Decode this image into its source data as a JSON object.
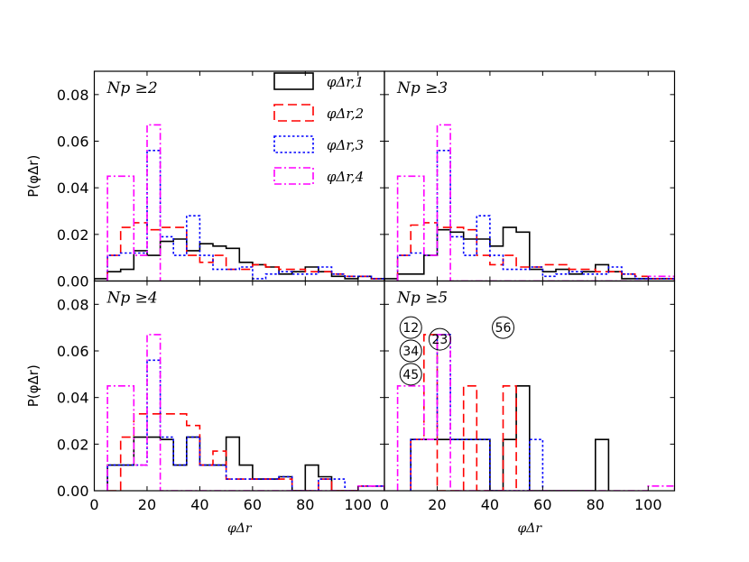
{
  "chart_data": {
    "type": "histogram-grid",
    "x_range": [
      0,
      110
    ],
    "y_range": [
      0,
      0.09
    ],
    "x_ticks": [
      "0",
      "20",
      "40",
      "60",
      "80",
      "100"
    ],
    "y_ticks": [
      "0.00",
      "0.02",
      "0.04",
      "0.06",
      "0.08"
    ],
    "y_label": "P(φΔr)",
    "x_label": "φΔr",
    "legend": [
      {
        "label": "φΔr,1",
        "color": "#000000",
        "style": "solid"
      },
      {
        "label": "φΔr,2",
        "color": "#ff0000",
        "style": "dashed"
      },
      {
        "label": "φΔr,3",
        "color": "#0000ff",
        "style": "dotted"
      },
      {
        "label": "φΔr,4",
        "color": "#ff00ff",
        "style": "dashdot"
      }
    ],
    "panels": [
      {
        "title": "Np ≥2",
        "series": [
          {
            "name": "φΔr,1",
            "x": [
              0,
              5,
              10,
              15,
              20,
              25,
              30,
              35,
              40,
              45,
              50,
              55,
              60,
              65,
              70,
              75,
              80,
              85,
              90,
              95,
              100,
              105,
              110
            ],
            "y": [
              0.001,
              0.004,
              0.005,
              0.013,
              0.011,
              0.017,
              0.018,
              0.013,
              0.016,
              0.015,
              0.014,
              0.008,
              0.007,
              0.006,
              0.003,
              0.004,
              0.006,
              0.004,
              0.002,
              0.001,
              0.002,
              0.001
            ]
          },
          {
            "name": "φΔr,2",
            "x": [
              5,
              10,
              15,
              20,
              25,
              30,
              35,
              40,
              45,
              50,
              55,
              60,
              65,
              70,
              75,
              80,
              85,
              90,
              95,
              100,
              105,
              110
            ],
            "y": [
              0.011,
              0.023,
              0.025,
              0.022,
              0.023,
              0.023,
              0.011,
              0.008,
              0.011,
              0.005,
              0.005,
              0.007,
              0.006,
              0.005,
              0.005,
              0.004,
              0.004,
              0.003,
              0.002,
              0.002,
              0.001
            ]
          },
          {
            "name": "φΔr,3",
            "x": [
              5,
              10,
              15,
              20,
              25,
              30,
              35,
              40,
              45,
              50,
              55,
              60,
              65,
              70,
              75,
              80,
              85,
              90,
              95,
              100,
              105,
              110
            ],
            "y": [
              0.011,
              0.012,
              0.012,
              0.056,
              0.019,
              0.011,
              0.028,
              0.011,
              0.005,
              0.005,
              0.006,
              0.001,
              0.003,
              0.004,
              0.003,
              0.003,
              0.006,
              0.003,
              0.002,
              0.002,
              0.001
            ]
          },
          {
            "name": "φΔr,4",
            "x": [
              5,
              15,
              20,
              25
            ],
            "y": [
              0.045,
              0.011,
              0.067
            ]
          }
        ]
      },
      {
        "title": "Np ≥3",
        "series": [
          {
            "name": "φΔr,1",
            "x": [
              0,
              5,
              10,
              15,
              20,
              25,
              30,
              35,
              40,
              45,
              50,
              55,
              60,
              65,
              70,
              75,
              80,
              85,
              90,
              95,
              100,
              105,
              110
            ],
            "y": [
              0.001,
              0.003,
              0.003,
              0.011,
              0.022,
              0.021,
              0.018,
              0.018,
              0.015,
              0.023,
              0.021,
              0.005,
              0.004,
              0.005,
              0.003,
              0.004,
              0.007,
              0.004,
              0.001,
              0.001,
              0.001,
              0.001
            ]
          },
          {
            "name": "φΔr,2",
            "x": [
              5,
              10,
              15,
              20,
              25,
              30,
              35,
              40,
              45,
              50,
              55,
              60,
              65,
              70,
              75,
              80,
              85,
              90,
              95,
              100,
              105,
              110
            ],
            "y": [
              0.011,
              0.024,
              0.025,
              0.023,
              0.023,
              0.022,
              0.011,
              0.007,
              0.011,
              0.006,
              0.006,
              0.007,
              0.007,
              0.005,
              0.005,
              0.004,
              0.004,
              0.003,
              0.002,
              0.001,
              0.001
            ]
          },
          {
            "name": "φΔr,3",
            "x": [
              5,
              10,
              15,
              20,
              25,
              30,
              35,
              40,
              45,
              50,
              55,
              60,
              65,
              70,
              75,
              80,
              85,
              90,
              95,
              100,
              105,
              110
            ],
            "y": [
              0.011,
              0.012,
              0.011,
              0.056,
              0.019,
              0.011,
              0.028,
              0.011,
              0.005,
              0.005,
              0.006,
              0.002,
              0.003,
              0.004,
              0.003,
              0.003,
              0.006,
              0.003,
              0.001,
              0.001,
              0.001
            ]
          },
          {
            "name": "φΔr,4",
            "x": [
              5,
              15,
              20,
              25,
              100,
              110
            ],
            "y": [
              0.045,
              0.011,
              0.067,
              0,
              0.002
            ]
          }
        ]
      },
      {
        "title": "Np ≥4",
        "series": [
          {
            "name": "φΔr,1",
            "x": [
              5,
              10,
              15,
              20,
              25,
              30,
              35,
              40,
              45,
              50,
              55,
              60,
              65,
              70,
              75,
              80,
              85,
              90,
              95,
              100,
              105,
              110
            ],
            "y": [
              0.011,
              0.011,
              0.023,
              0.023,
              0.022,
              0.011,
              0.023,
              0.011,
              0.011,
              0.023,
              0.011,
              0.005,
              0.005,
              0.006,
              0,
              0.011,
              0.006,
              0,
              0,
              0.002,
              0.002
            ]
          },
          {
            "name": "φΔr,2",
            "x": [
              5,
              10,
              15,
              20,
              25,
              30,
              35,
              40,
              45,
              50,
              55,
              60,
              65,
              70,
              75,
              80,
              85,
              90,
              95,
              100,
              105,
              110
            ],
            "y": [
              0,
              0.023,
              0.033,
              0.033,
              0.033,
              0.033,
              0.028,
              0.011,
              0.017,
              0.005,
              0.005,
              0.005,
              0.005,
              0.005,
              0,
              0,
              0.005,
              0,
              0,
              0.002,
              0.002
            ]
          },
          {
            "name": "φΔr,3",
            "x": [
              5,
              10,
              15,
              20,
              25,
              30,
              35,
              40,
              45,
              50,
              55,
              60,
              65,
              70,
              75,
              80,
              85,
              90,
              95,
              100,
              105,
              110
            ],
            "y": [
              0.011,
              0.011,
              0.011,
              0.056,
              0.023,
              0.011,
              0.023,
              0.011,
              0.011,
              0.005,
              0.005,
              0.005,
              0.005,
              0.006,
              0,
              0,
              0.005,
              0.005,
              0,
              0.002,
              0.002
            ]
          },
          {
            "name": "φΔr,4",
            "x": [
              5,
              15,
              20,
              25,
              100,
              110
            ],
            "y": [
              0.045,
              0.011,
              0.067,
              0,
              0.002
            ]
          }
        ]
      },
      {
        "title": "Np ≥5",
        "series": [
          {
            "name": "φΔr,1",
            "x": [
              10,
              20,
              30,
              40,
              45,
              50,
              55,
              80,
              85
            ],
            "y": [
              0.022,
              0.022,
              0.022,
              0,
              0.022,
              0.045,
              0,
              0.022
            ]
          },
          {
            "name": "φΔr,2",
            "x": [
              10,
              15,
              20,
              30,
              35,
              45,
              50
            ],
            "y": [
              0.022,
              0.067,
              0,
              0.045,
              0,
              0.045
            ]
          },
          {
            "name": "φΔr,3",
            "x": [
              10,
              20,
              25,
              40,
              55,
              60
            ],
            "y": [
              0.022,
              0.067,
              0.022,
              0,
              0.022
            ]
          },
          {
            "name": "φΔr,4",
            "x": [
              5,
              15,
              20,
              25,
              100,
              110
            ],
            "y": [
              0.045,
              0.022,
              0.067,
              0,
              0.002
            ]
          }
        ],
        "annotations": [
          {
            "label": "12",
            "x": 10,
            "y": 0.07
          },
          {
            "label": "23",
            "x": 21,
            "y": 0.065
          },
          {
            "label": "34",
            "x": 10,
            "y": 0.06
          },
          {
            "label": "45",
            "x": 10,
            "y": 0.05
          },
          {
            "label": "56",
            "x": 45,
            "y": 0.07
          }
        ]
      }
    ]
  }
}
